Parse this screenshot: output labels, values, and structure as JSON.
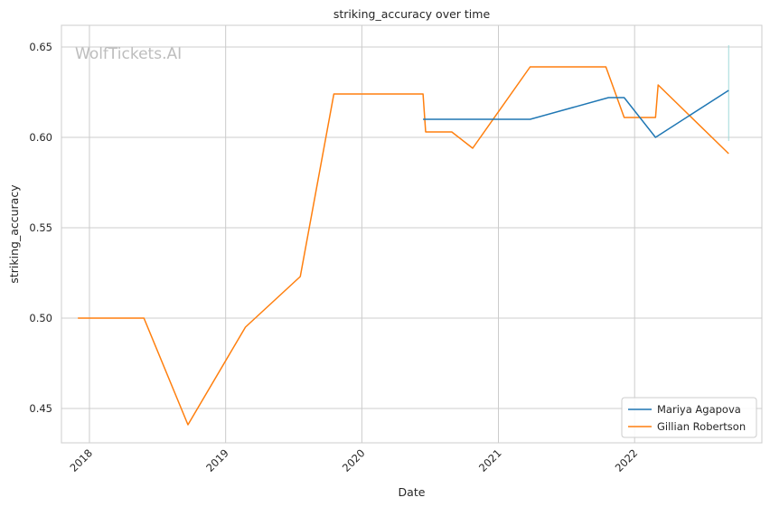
{
  "chart_data": {
    "type": "line",
    "title": "striking_accuracy over time",
    "xlabel": "Date",
    "ylabel": "striking_accuracy",
    "watermark": "WolfTickets.AI",
    "x_ticks": [
      "2018",
      "2019",
      "2020",
      "2021",
      "2022"
    ],
    "y_ticks": [
      "0.45",
      "0.50",
      "0.55",
      "0.60",
      "0.65"
    ],
    "y_tick_values": [
      0.45,
      0.5,
      0.55,
      0.6,
      0.65
    ],
    "xlim": [
      "2017-10-18",
      "2022-12-08"
    ],
    "ylim": [
      0.431,
      0.662
    ],
    "grid": true,
    "legend_position": "lower-right",
    "series": [
      {
        "name": "Mariya Agapova",
        "color": "#1f77b4",
        "points": [
          [
            "2020-06-13",
            0.61
          ],
          [
            "2021-03-27",
            0.61
          ],
          [
            "2021-10-23",
            0.622
          ],
          [
            "2021-12-04",
            0.622
          ],
          [
            "2022-02-26",
            0.6
          ],
          [
            "2022-09-10",
            0.626
          ]
        ]
      },
      {
        "name": "Gillian Robertson",
        "color": "#ff7f0e",
        "points": [
          [
            "2017-12-01",
            0.5
          ],
          [
            "2018-05-27",
            0.5
          ],
          [
            "2018-09-22",
            0.441
          ],
          [
            "2019-02-23",
            0.495
          ],
          [
            "2019-07-20",
            0.523
          ],
          [
            "2019-10-18",
            0.624
          ],
          [
            "2020-06-13",
            0.624
          ],
          [
            "2020-06-20",
            0.603
          ],
          [
            "2020-08-29",
            0.603
          ],
          [
            "2020-10-24",
            0.594
          ],
          [
            "2021-03-27",
            0.639
          ],
          [
            "2021-10-16",
            0.639
          ],
          [
            "2021-12-04",
            0.611
          ],
          [
            "2022-02-26",
            0.611
          ],
          [
            "2022-03-05",
            0.629
          ],
          [
            "2022-09-10",
            0.591
          ]
        ]
      }
    ]
  }
}
